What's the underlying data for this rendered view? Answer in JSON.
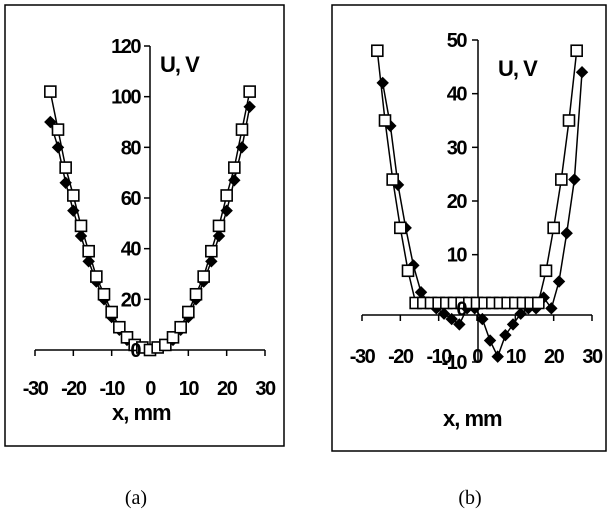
{
  "chart_data": [
    {
      "panel": "a",
      "type": "line",
      "caption": "(a)",
      "xlabel": "x, mm",
      "ylabel": "U, V",
      "xlim": [
        -30,
        30
      ],
      "ylim": [
        0,
        120
      ],
      "xticks": [
        -30,
        -20,
        -10,
        0,
        10,
        20,
        30
      ],
      "yticks": [
        0,
        20,
        40,
        60,
        80,
        100,
        120
      ],
      "xtick_labels": [
        "-30",
        "-20",
        "-10",
        "0",
        "10",
        "20",
        "30"
      ],
      "ytick_labels": [
        "0",
        "20",
        "40",
        "60",
        "80",
        "100",
        "120"
      ],
      "series": [
        {
          "marker": "diamond-filled",
          "x": [
            -26,
            -24,
            -22,
            -20,
            -18,
            -16,
            -14,
            -12,
            -10,
            -8,
            -6,
            -4,
            -2,
            0,
            2,
            4,
            6,
            8,
            10,
            12,
            14,
            16,
            18,
            20,
            22,
            24,
            26
          ],
          "y": [
            90,
            80,
            66,
            55,
            45,
            35,
            27,
            20,
            13,
            8,
            4,
            2,
            1,
            0,
            1,
            2,
            4,
            8,
            13,
            20,
            27,
            35,
            45,
            55,
            67,
            80,
            96
          ]
        },
        {
          "marker": "square-open",
          "x": [
            -26,
            -24,
            -22,
            -20,
            -18,
            -16,
            -14,
            -12,
            -10,
            -8,
            -6,
            -4,
            -2,
            0,
            2,
            4,
            6,
            8,
            10,
            12,
            14,
            16,
            18,
            20,
            22,
            24,
            26
          ],
          "y": [
            102,
            87,
            72,
            61,
            49,
            39,
            29,
            22,
            15,
            9,
            5,
            2,
            1,
            0,
            1,
            2,
            5,
            9,
            15,
            22,
            29,
            39,
            49,
            61,
            72,
            87,
            102
          ]
        }
      ]
    },
    {
      "panel": "b",
      "type": "line",
      "caption": "(b)",
      "xlabel": "x, mm",
      "ylabel": "U, V",
      "xlim": [
        -30,
        30
      ],
      "ylim": [
        -10,
        50
      ],
      "xticks": [
        -30,
        -20,
        -10,
        0,
        10,
        20,
        30
      ],
      "yticks": [
        -10,
        0,
        10,
        20,
        30,
        40,
        50
      ],
      "xtick_labels": [
        "-30",
        "-20",
        "-10",
        "0",
        "10",
        "20",
        "30"
      ],
      "ytick_labels": [
        "-10",
        "0",
        "10",
        "20",
        "30",
        "40",
        "50"
      ],
      "series": [
        {
          "marker": "diamond-filled",
          "x": [
            -26,
            -24,
            -22,
            -20,
            -18,
            -16,
            -14,
            -12,
            -10,
            -8,
            -6,
            -4,
            -2,
            0,
            2,
            4,
            6,
            8,
            10,
            12,
            14,
            16,
            18,
            20,
            22,
            24,
            26
          ],
          "y": [
            42,
            34,
            23,
            15,
            8,
            3,
            1,
            0,
            -1,
            -2,
            -3,
            0,
            0,
            -2,
            -6,
            -9,
            -5,
            -3,
            -1,
            0,
            0,
            2,
            0,
            5,
            14,
            24,
            44
          ],
          "note": "small x-offset applied"
        },
        {
          "marker": "square-open",
          "x": [
            -26,
            -24,
            -22,
            -20,
            -18,
            -16,
            -14,
            -12,
            -10,
            -8,
            -6,
            -4,
            -2,
            0,
            2,
            4,
            6,
            8,
            10,
            12,
            14,
            16,
            18,
            20,
            22,
            24,
            26
          ],
          "y": [
            48,
            35,
            24,
            15,
            7,
            1,
            1,
            1,
            1,
            1,
            1,
            1,
            1,
            1,
            1,
            1,
            1,
            1,
            1,
            1,
            1,
            1,
            7,
            15,
            24,
            35,
            48
          ]
        }
      ]
    }
  ]
}
